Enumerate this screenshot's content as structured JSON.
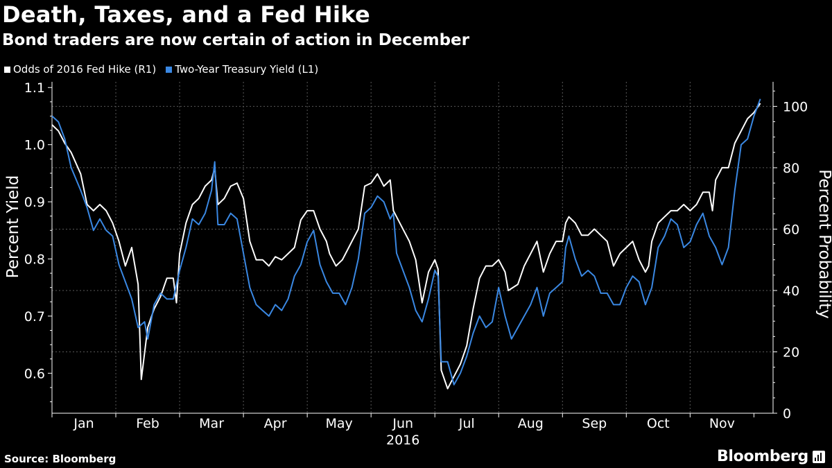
{
  "title": "Death, Taxes, and a Fed Hike",
  "subtitle": "Bond traders are now certain of action in December",
  "footer": {
    "source": "Source: Bloomberg",
    "brand": "Bloomberg"
  },
  "colors": {
    "background": "#000000",
    "odds_line": "#ffffff",
    "yield_line": "#3a88e3",
    "grid": "#5a5a5a"
  },
  "chart_data": {
    "type": "line",
    "legend": [
      {
        "name": "Odds of 2016 Fed Hike (R1)",
        "color": "#ffffff",
        "axis": "right"
      },
      {
        "name": "Two-Year Treasury Yield (L1)",
        "color": "#3a88e3",
        "axis": "left"
      }
    ],
    "x_range": [
      0,
      11.3
    ],
    "x_tick_labels": [
      "Jan",
      "Feb",
      "Mar",
      "Apr",
      "May",
      "Jun",
      "Jul",
      "Aug",
      "Sep",
      "Oct",
      "Nov"
    ],
    "year_label": "2016",
    "y_left": {
      "label": "Percent Yield",
      "range": [
        0.53,
        1.11
      ],
      "ticks": [
        0.6,
        0.7,
        0.8,
        0.9,
        1.0,
        1.1
      ],
      "tick_labels": [
        "0.6",
        "0.7",
        "0.8",
        "0.9",
        "1.0",
        "1.1"
      ]
    },
    "y_right": {
      "label": "Percent Probability",
      "range": [
        0,
        108
      ],
      "ticks": [
        0,
        20,
        40,
        60,
        80,
        100
      ],
      "tick_labels": [
        "0",
        "20",
        "40",
        "60",
        "80",
        "100"
      ]
    },
    "grid": true,
    "series": [
      {
        "name": "Odds of 2016 Fed Hike (R1)",
        "axis": "right",
        "points": [
          [
            0,
            94
          ],
          [
            0.1,
            92
          ],
          [
            0.2,
            88
          ],
          [
            0.3,
            85
          ],
          [
            0.45,
            78
          ],
          [
            0.55,
            68
          ],
          [
            0.65,
            66
          ],
          [
            0.75,
            68
          ],
          [
            0.85,
            66
          ],
          [
            0.95,
            62
          ],
          [
            1.05,
            56
          ],
          [
            1.15,
            48
          ],
          [
            1.25,
            54
          ],
          [
            1.35,
            42
          ],
          [
            1.4,
            11
          ],
          [
            1.5,
            28
          ],
          [
            1.6,
            34
          ],
          [
            1.7,
            38
          ],
          [
            1.8,
            44
          ],
          [
            1.9,
            44
          ],
          [
            1.95,
            36
          ],
          [
            2.0,
            52
          ],
          [
            2.1,
            62
          ],
          [
            2.2,
            68
          ],
          [
            2.3,
            70
          ],
          [
            2.4,
            74
          ],
          [
            2.5,
            76
          ],
          [
            2.55,
            80
          ],
          [
            2.6,
            68
          ],
          [
            2.7,
            70
          ],
          [
            2.8,
            74
          ],
          [
            2.9,
            75
          ],
          [
            3.0,
            70
          ],
          [
            3.1,
            56
          ],
          [
            3.2,
            50
          ],
          [
            3.3,
            50
          ],
          [
            3.4,
            48
          ],
          [
            3.5,
            51
          ],
          [
            3.6,
            50
          ],
          [
            3.7,
            52
          ],
          [
            3.8,
            54
          ],
          [
            3.9,
            63
          ],
          [
            4.0,
            66
          ],
          [
            4.1,
            66
          ],
          [
            4.2,
            60
          ],
          [
            4.3,
            56
          ],
          [
            4.35,
            52
          ],
          [
            4.45,
            48
          ],
          [
            4.55,
            50
          ],
          [
            4.6,
            52
          ],
          [
            4.7,
            56
          ],
          [
            4.8,
            60
          ],
          [
            4.9,
            74
          ],
          [
            5.0,
            75
          ],
          [
            5.1,
            78
          ],
          [
            5.2,
            74
          ],
          [
            5.3,
            76
          ],
          [
            5.35,
            66
          ],
          [
            5.4,
            64
          ],
          [
            5.5,
            60
          ],
          [
            5.6,
            56
          ],
          [
            5.7,
            50
          ],
          [
            5.8,
            36
          ],
          [
            5.9,
            46
          ],
          [
            6.0,
            50
          ],
          [
            6.05,
            47
          ],
          [
            6.1,
            14
          ],
          [
            6.2,
            8
          ],
          [
            6.3,
            12
          ],
          [
            6.4,
            16
          ],
          [
            6.5,
            22
          ],
          [
            6.6,
            34
          ],
          [
            6.7,
            44
          ],
          [
            6.8,
            48
          ],
          [
            6.9,
            48
          ],
          [
            7.0,
            50
          ],
          [
            7.1,
            46
          ],
          [
            7.15,
            40
          ],
          [
            7.3,
            42
          ],
          [
            7.4,
            48
          ],
          [
            7.5,
            52
          ],
          [
            7.6,
            56
          ],
          [
            7.7,
            46
          ],
          [
            7.8,
            52
          ],
          [
            7.85,
            54
          ],
          [
            7.9,
            56
          ],
          [
            8.0,
            56
          ],
          [
            8.05,
            62
          ],
          [
            8.1,
            64
          ],
          [
            8.2,
            62
          ],
          [
            8.3,
            58
          ],
          [
            8.4,
            58
          ],
          [
            8.5,
            60
          ],
          [
            8.6,
            58
          ],
          [
            8.7,
            56
          ],
          [
            8.8,
            48
          ],
          [
            8.9,
            52
          ],
          [
            9.0,
            54
          ],
          [
            9.1,
            56
          ],
          [
            9.2,
            50
          ],
          [
            9.3,
            46
          ],
          [
            9.35,
            48
          ],
          [
            9.4,
            56
          ],
          [
            9.5,
            62
          ],
          [
            9.6,
            64
          ],
          [
            9.7,
            66
          ],
          [
            9.8,
            66
          ],
          [
            9.9,
            68
          ],
          [
            10.0,
            66
          ],
          [
            10.1,
            68
          ],
          [
            10.2,
            72
          ],
          [
            10.3,
            72
          ],
          [
            10.35,
            66
          ],
          [
            10.4,
            76
          ],
          [
            10.5,
            80
          ],
          [
            10.6,
            80
          ],
          [
            10.7,
            88
          ],
          [
            10.8,
            92
          ],
          [
            10.9,
            96
          ],
          [
            11.0,
            98
          ],
          [
            11.1,
            101
          ]
        ]
      },
      {
        "name": "Two-Year Treasury Yield (L1)",
        "axis": "left",
        "points": [
          [
            0,
            1.05
          ],
          [
            0.1,
            1.04
          ],
          [
            0.2,
            1.01
          ],
          [
            0.3,
            0.96
          ],
          [
            0.45,
            0.92
          ],
          [
            0.55,
            0.89
          ],
          [
            0.65,
            0.85
          ],
          [
            0.75,
            0.87
          ],
          [
            0.85,
            0.85
          ],
          [
            0.95,
            0.84
          ],
          [
            1.05,
            0.79
          ],
          [
            1.15,
            0.76
          ],
          [
            1.25,
            0.73
          ],
          [
            1.35,
            0.68
          ],
          [
            1.45,
            0.69
          ],
          [
            1.5,
            0.66
          ],
          [
            1.6,
            0.72
          ],
          [
            1.7,
            0.74
          ],
          [
            1.8,
            0.73
          ],
          [
            1.9,
            0.73
          ],
          [
            2.0,
            0.78
          ],
          [
            2.1,
            0.82
          ],
          [
            2.2,
            0.87
          ],
          [
            2.3,
            0.86
          ],
          [
            2.4,
            0.88
          ],
          [
            2.5,
            0.92
          ],
          [
            2.55,
            0.97
          ],
          [
            2.6,
            0.86
          ],
          [
            2.7,
            0.86
          ],
          [
            2.8,
            0.88
          ],
          [
            2.9,
            0.87
          ],
          [
            3.0,
            0.81
          ],
          [
            3.1,
            0.75
          ],
          [
            3.2,
            0.72
          ],
          [
            3.3,
            0.71
          ],
          [
            3.4,
            0.7
          ],
          [
            3.5,
            0.72
          ],
          [
            3.6,
            0.71
          ],
          [
            3.7,
            0.73
          ],
          [
            3.8,
            0.77
          ],
          [
            3.9,
            0.79
          ],
          [
            4.0,
            0.83
          ],
          [
            4.1,
            0.85
          ],
          [
            4.2,
            0.79
          ],
          [
            4.3,
            0.76
          ],
          [
            4.4,
            0.74
          ],
          [
            4.5,
            0.74
          ],
          [
            4.6,
            0.72
          ],
          [
            4.7,
            0.75
          ],
          [
            4.8,
            0.8
          ],
          [
            4.9,
            0.88
          ],
          [
            5.0,
            0.89
          ],
          [
            5.1,
            0.91
          ],
          [
            5.2,
            0.9
          ],
          [
            5.3,
            0.87
          ],
          [
            5.35,
            0.88
          ],
          [
            5.4,
            0.81
          ],
          [
            5.5,
            0.78
          ],
          [
            5.6,
            0.75
          ],
          [
            5.7,
            0.71
          ],
          [
            5.8,
            0.69
          ],
          [
            5.9,
            0.73
          ],
          [
            6.0,
            0.78
          ],
          [
            6.05,
            0.77
          ],
          [
            6.1,
            0.62
          ],
          [
            6.2,
            0.62
          ],
          [
            6.3,
            0.58
          ],
          [
            6.4,
            0.6
          ],
          [
            6.5,
            0.63
          ],
          [
            6.6,
            0.67
          ],
          [
            6.7,
            0.7
          ],
          [
            6.8,
            0.68
          ],
          [
            6.9,
            0.69
          ],
          [
            7.0,
            0.75
          ],
          [
            7.1,
            0.7
          ],
          [
            7.2,
            0.66
          ],
          [
            7.3,
            0.68
          ],
          [
            7.4,
            0.7
          ],
          [
            7.5,
            0.72
          ],
          [
            7.6,
            0.75
          ],
          [
            7.7,
            0.7
          ],
          [
            7.8,
            0.74
          ],
          [
            7.9,
            0.75
          ],
          [
            8.0,
            0.76
          ],
          [
            8.05,
            0.82
          ],
          [
            8.1,
            0.84
          ],
          [
            8.2,
            0.8
          ],
          [
            8.3,
            0.77
          ],
          [
            8.4,
            0.78
          ],
          [
            8.5,
            0.77
          ],
          [
            8.6,
            0.74
          ],
          [
            8.7,
            0.74
          ],
          [
            8.8,
            0.72
          ],
          [
            8.9,
            0.72
          ],
          [
            9.0,
            0.75
          ],
          [
            9.1,
            0.77
          ],
          [
            9.2,
            0.76
          ],
          [
            9.3,
            0.72
          ],
          [
            9.4,
            0.75
          ],
          [
            9.5,
            0.82
          ],
          [
            9.6,
            0.84
          ],
          [
            9.7,
            0.87
          ],
          [
            9.8,
            0.86
          ],
          [
            9.9,
            0.82
          ],
          [
            10.0,
            0.83
          ],
          [
            10.1,
            0.86
          ],
          [
            10.2,
            0.88
          ],
          [
            10.3,
            0.84
          ],
          [
            10.4,
            0.82
          ],
          [
            10.5,
            0.79
          ],
          [
            10.6,
            0.82
          ],
          [
            10.7,
            0.92
          ],
          [
            10.8,
            1.0
          ],
          [
            10.9,
            1.01
          ],
          [
            11.0,
            1.05
          ],
          [
            11.1,
            1.08
          ]
        ]
      }
    ]
  }
}
